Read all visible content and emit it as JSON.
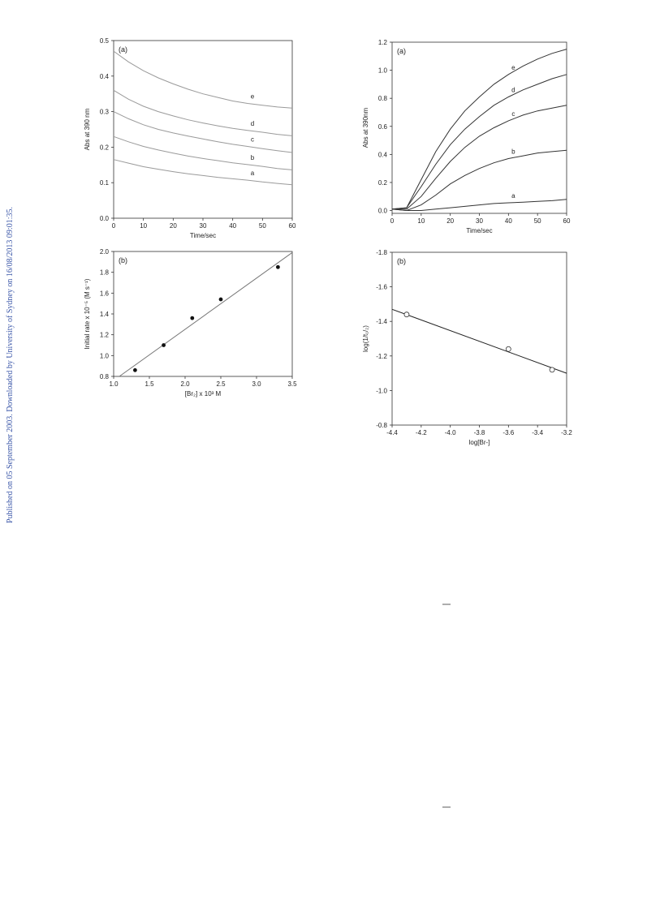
{
  "side_note": "Published on 05 September 2003. Downloaded by University of Sydney on 16/08/2013 09:01:35.",
  "chart_data": [
    {
      "type": "line",
      "panel": "(a)",
      "x_label": "Time/sec",
      "y_label": "Abs at 390 nm",
      "x": [
        0,
        5,
        10,
        15,
        20,
        25,
        30,
        35,
        40,
        45,
        50,
        55,
        60
      ],
      "xlim": [
        0,
        60
      ],
      "xticks": [
        0,
        10,
        20,
        30,
        40,
        50,
        60
      ],
      "ylim": [
        0,
        0.5
      ],
      "yticks": [
        {
          "value": 0,
          "label": "0.0"
        },
        0.1,
        0.2,
        0.3,
        0.4,
        0.5
      ],
      "series": [
        {
          "name": "e",
          "color": "#9a9a9a",
          "values": [
            0.47,
            0.44,
            0.415,
            0.395,
            0.378,
            0.363,
            0.35,
            0.34,
            0.33,
            0.323,
            0.318,
            0.313,
            0.31
          ]
        },
        {
          "name": "d",
          "color": "#9a9a9a",
          "values": [
            0.36,
            0.335,
            0.315,
            0.3,
            0.288,
            0.277,
            0.268,
            0.26,
            0.253,
            0.247,
            0.242,
            0.236,
            0.232
          ]
        },
        {
          "name": "c",
          "color": "#9a9a9a",
          "values": [
            0.3,
            0.28,
            0.263,
            0.25,
            0.24,
            0.231,
            0.223,
            0.215,
            0.208,
            0.202,
            0.196,
            0.19,
            0.185
          ]
        },
        {
          "name": "b",
          "color": "#9a9a9a",
          "values": [
            0.23,
            0.215,
            0.202,
            0.192,
            0.183,
            0.175,
            0.168,
            0.162,
            0.156,
            0.151,
            0.146,
            0.14,
            0.136
          ]
        },
        {
          "name": "a",
          "color": "#9a9a9a",
          "values": [
            0.165,
            0.155,
            0.145,
            0.138,
            0.131,
            0.125,
            0.12,
            0.115,
            0.111,
            0.107,
            0.102,
            0.098,
            0.094
          ]
        }
      ]
    },
    {
      "type": "line",
      "panel": "(a)",
      "x_label": "Time/sec",
      "y_label": "Abs at 390nm",
      "x": [
        0,
        5,
        10,
        15,
        20,
        25,
        30,
        35,
        40,
        45,
        50,
        55,
        60
      ],
      "xlim": [
        0,
        60
      ],
      "xticks": [
        0,
        10,
        20,
        30,
        40,
        50,
        60
      ],
      "ylim": [
        -0.02,
        1.2
      ],
      "yticks": [
        {
          "value": 0,
          "label": "0.0"
        },
        0.2,
        0.4,
        0.6,
        0.8,
        {
          "value": 1,
          "label": "1.0"
        },
        1.2
      ],
      "series": [
        {
          "name": "e",
          "color": "#333333",
          "values": [
            0.01,
            0.02,
            0.22,
            0.42,
            0.58,
            0.71,
            0.81,
            0.9,
            0.97,
            1.03,
            1.08,
            1.12,
            1.15
          ]
        },
        {
          "name": "d",
          "color": "#333333",
          "values": [
            0.01,
            0.02,
            0.17,
            0.33,
            0.47,
            0.58,
            0.67,
            0.75,
            0.81,
            0.86,
            0.9,
            0.94,
            0.97
          ]
        },
        {
          "name": "c",
          "color": "#333333",
          "values": [
            0.01,
            0.01,
            0.1,
            0.23,
            0.35,
            0.45,
            0.53,
            0.59,
            0.64,
            0.68,
            0.71,
            0.73,
            0.75
          ]
        },
        {
          "name": "b",
          "color": "#333333",
          "values": [
            0.01,
            0,
            0.04,
            0.11,
            0.19,
            0.25,
            0.3,
            0.34,
            0.37,
            0.39,
            0.41,
            0.42,
            0.43
          ]
        },
        {
          "name": "a",
          "color": "#333333",
          "values": [
            0.01,
            0,
            0,
            0.01,
            0.02,
            0.03,
            0.04,
            0.05,
            0.055,
            0.06,
            0.065,
            0.07,
            0.08
          ]
        }
      ]
    },
    {
      "type": "scatter",
      "panel": "(b)",
      "x_label": "[Br₂] x 10³ M",
      "y_label": "Initial rate x 10⁻⁵ (M s⁻¹)",
      "x": [
        1.3,
        1.7,
        2.1,
        2.5,
        3.3
      ],
      "values": [
        0.86,
        1.1,
        1.36,
        1.54,
        1.85
      ],
      "color": "#111111",
      "open_markers": false,
      "fit": {
        "x": [
          1.08,
          3.5
        ],
        "values": [
          0.8,
          1.99
        ],
        "color": "#777777"
      },
      "xlim": [
        1,
        3.5
      ],
      "xticks": [
        {
          "value": 1,
          "label": "1.0"
        },
        1.5,
        {
          "value": 2,
          "label": "2.0"
        },
        2.5,
        {
          "value": 3,
          "label": "3.0"
        },
        3.5
      ],
      "ylim": [
        0.8,
        2
      ],
      "yticks": [
        0.8,
        {
          "value": 1,
          "label": "1.0"
        },
        1.2,
        1.4,
        1.6,
        1.8,
        {
          "value": 2,
          "label": "2.0"
        }
      ]
    },
    {
      "type": "scatter",
      "panel": "(b)",
      "x_label": "log[Br-]",
      "y_label": "log(1/t₁/₂)",
      "x": [
        -4.3,
        -3.6,
        -3.3
      ],
      "values": [
        -1.44,
        -1.24,
        -1.12
      ],
      "color": "#333333",
      "open_markers": true,
      "fit": {
        "x": [
          -4.4,
          -3.2
        ],
        "values": [
          -1.47,
          -1.1
        ],
        "color": "#222222"
      },
      "xlim": [
        -4.4,
        -3.2
      ],
      "xticks": [
        -4.4,
        -4.2,
        {
          "value": -4,
          "label": "-4.0"
        },
        -3.8,
        -3.6,
        -3.4,
        -3.2
      ],
      "ylim": [
        -0.8,
        -1.8
      ],
      "yticks": [
        -1.8,
        -1.6,
        -1.4,
        -1.2,
        {
          "value": -1,
          "label": "-1.0"
        },
        -0.8
      ]
    }
  ]
}
